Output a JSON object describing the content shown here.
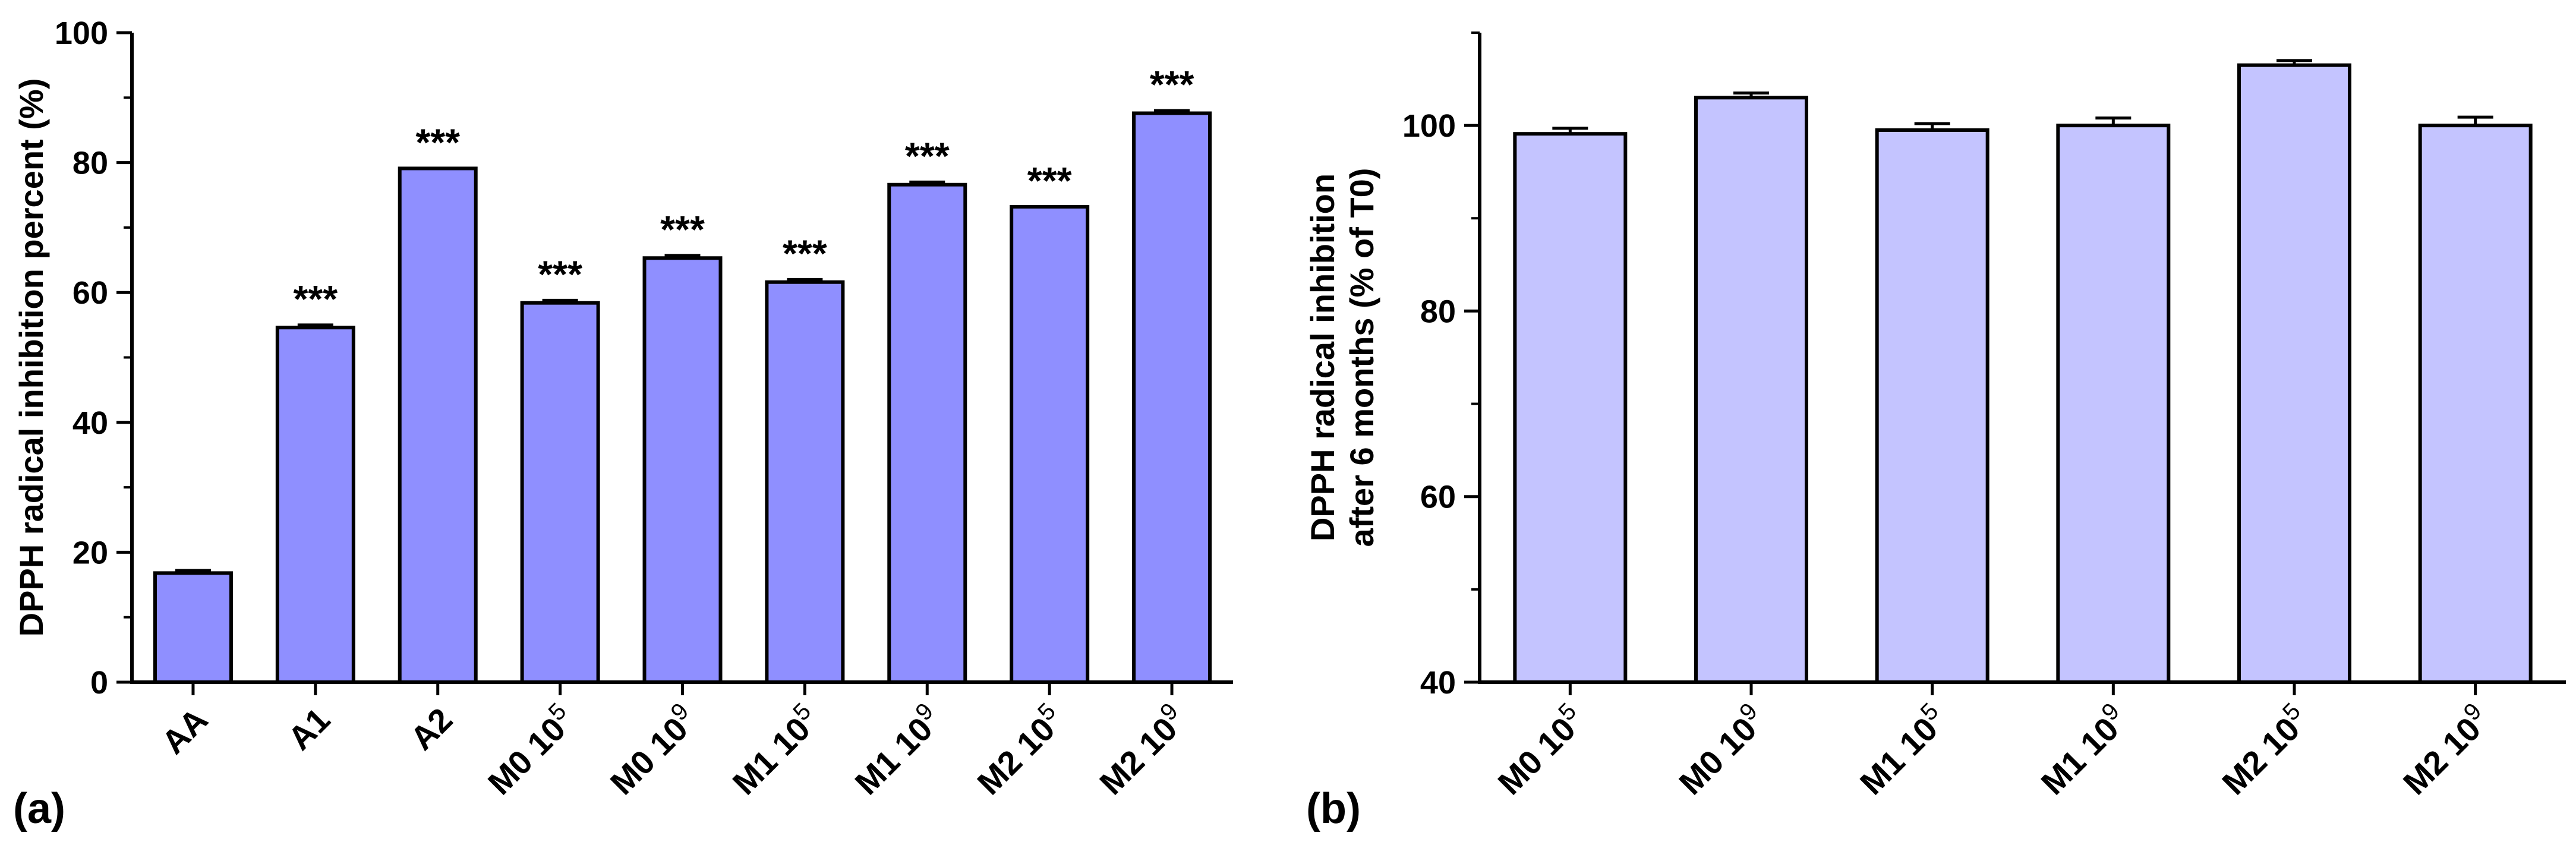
{
  "colors": {
    "bar_a": "#8f8fff",
    "bar_b": "#c4c4ff",
    "axis": "#000000"
  },
  "chart_data": [
    {
      "type": "bar",
      "panel_label": "(a)",
      "ylabel": "DPPH radical inhibition percent (%)",
      "xlabel": "",
      "ylim": [
        0,
        100
      ],
      "yticks": [
        0,
        20,
        40,
        60,
        80,
        100
      ],
      "yminor": 10,
      "categories": [
        {
          "base": "AA",
          "exp": ""
        },
        {
          "base": "A1",
          "exp": ""
        },
        {
          "base": "A2",
          "exp": ""
        },
        {
          "base": "M0 10",
          "exp": "5"
        },
        {
          "base": "M0 10",
          "exp": "9"
        },
        {
          "base": "M1 10",
          "exp": "5"
        },
        {
          "base": "M1 10",
          "exp": "9"
        },
        {
          "base": "M2 10",
          "exp": "5"
        },
        {
          "base": "M2 10",
          "exp": "9"
        }
      ],
      "values": [
        16.8,
        54.6,
        79.1,
        58.4,
        65.3,
        61.6,
        76.6,
        73.2,
        87.6
      ],
      "errors": [
        0.4,
        0.4,
        0.0,
        0.4,
        0.4,
        0.4,
        0.4,
        0.0,
        0.4
      ],
      "annotations": [
        "",
        "***",
        "***",
        "***",
        "***",
        "***",
        "***",
        "***",
        "***"
      ]
    },
    {
      "type": "bar",
      "panel_label": "(b)",
      "ylabel": [
        "DPPH radical inhibition",
        "after 6 months (% of T0)"
      ],
      "xlabel": "",
      "ylim": [
        40,
        110
      ],
      "yticks": [
        40,
        60,
        80,
        100
      ],
      "yminor": 10,
      "categories": [
        {
          "base": "M0 10",
          "exp": "5"
        },
        {
          "base": "M0 10",
          "exp": "9"
        },
        {
          "base": "M1 10",
          "exp": "5"
        },
        {
          "base": "M1 10",
          "exp": "9"
        },
        {
          "base": "M2 10",
          "exp": "5"
        },
        {
          "base": "M2 10",
          "exp": "9"
        }
      ],
      "values": [
        99.1,
        103.0,
        99.5,
        100.0,
        106.5,
        100.0
      ],
      "errors": [
        0.6,
        0.5,
        0.7,
        0.8,
        0.5,
        0.9
      ]
    }
  ]
}
